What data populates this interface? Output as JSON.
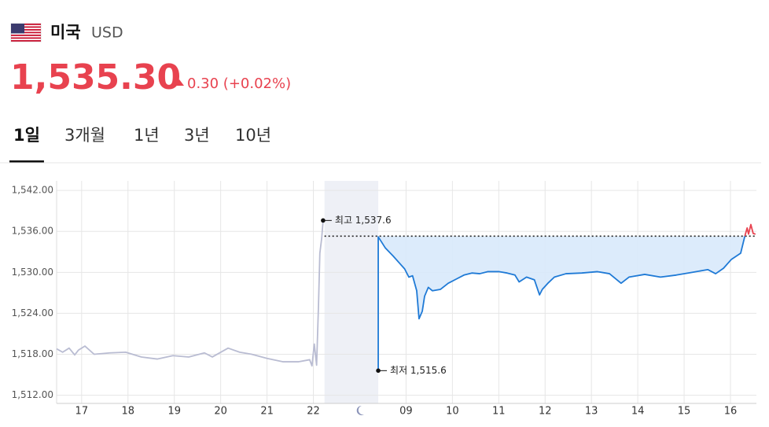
{
  "header": {
    "country": "미국",
    "currency": "USD",
    "price": {
      "value": 1535.3,
      "label": "1,535.30"
    },
    "change": "0.30 (+0.02%)"
  },
  "tabs": {
    "items": [
      "1일",
      "3개월",
      "1년",
      "3년",
      "10년"
    ],
    "active": 0
  },
  "chart_data": {
    "type": "line",
    "xlim": [
      -0.54,
      14.56
    ],
    "ylim": [
      1510.8,
      1543.4
    ],
    "yticks": [
      {
        "value": 1542,
        "label": "1,542.00"
      },
      {
        "value": 1536,
        "label": "1,536.00"
      },
      {
        "value": 1530,
        "label": "1,530.00"
      },
      {
        "value": 1524,
        "label": "1,524.00"
      },
      {
        "value": 1518,
        "label": "1,518.00"
      },
      {
        "value": 1512,
        "label": "1,512.00"
      }
    ],
    "xticks": [
      {
        "value": 0,
        "label": "17"
      },
      {
        "value": 1,
        "label": "18"
      },
      {
        "value": 2,
        "label": "19"
      },
      {
        "value": 3,
        "label": "20"
      },
      {
        "value": 4,
        "label": "21"
      },
      {
        "value": 5,
        "label": "22"
      },
      {
        "value": 7,
        "label": "09"
      },
      {
        "value": 8,
        "label": "10"
      },
      {
        "value": 9,
        "label": "11"
      },
      {
        "value": 10,
        "label": "12"
      },
      {
        "value": 11,
        "label": "13"
      },
      {
        "value": 12,
        "label": "14"
      },
      {
        "value": 13,
        "label": "15"
      },
      {
        "value": 14,
        "label": "16"
      }
    ],
    "grid": true,
    "shaded_x": [
      5.24,
      6.4
    ],
    "series": [
      {
        "color": "#b9bcd2",
        "x": [
          -0.54,
          -0.41,
          -0.27,
          -0.15,
          -0.07,
          0.07,
          0.27,
          0.61,
          0.95,
          1.29,
          1.63,
          1.97,
          2.31,
          2.65,
          2.82,
          3.16,
          3.41,
          3.67,
          4.0,
          4.34,
          4.68,
          4.92,
          4.97,
          5.02,
          5.07,
          5.11,
          5.14,
          5.18,
          5.21
        ],
        "values": [
          1518.8,
          1518.3,
          1518.9,
          1517.9,
          1518.6,
          1519.2,
          1518.0,
          1518.2,
          1518.3,
          1517.6,
          1517.3,
          1517.8,
          1517.6,
          1518.2,
          1517.6,
          1518.9,
          1518.3,
          1518.0,
          1517.4,
          1516.9,
          1516.9,
          1517.2,
          1516.3,
          1519.5,
          1516.4,
          1525.0,
          1532.8,
          1535.0,
          1537.6
        ]
      },
      {
        "color": "#1f7ad6",
        "fill": "#d8e9fb",
        "x": [
          6.4,
          6.4,
          6.55,
          6.72,
          6.97,
          7.06,
          7.14,
          7.23,
          7.28,
          7.35,
          7.4,
          7.48,
          7.57,
          7.74,
          7.91,
          8.08,
          8.25,
          8.42,
          8.59,
          8.76,
          9.01,
          9.18,
          9.35,
          9.44,
          9.6,
          9.77,
          9.88,
          9.94,
          10.06,
          10.2,
          10.45,
          10.79,
          11.13,
          11.39,
          11.64,
          11.81,
          12.15,
          12.49,
          12.83,
          13.17,
          13.51,
          13.68,
          13.85,
          14.02,
          14.22,
          14.31
        ],
        "values": [
          1515.6,
          1535.2,
          1533.6,
          1532.4,
          1530.5,
          1529.3,
          1529.5,
          1527.3,
          1523.2,
          1524.3,
          1526.5,
          1527.8,
          1527.3,
          1527.5,
          1528.4,
          1529.0,
          1529.6,
          1529.9,
          1529.8,
          1530.1,
          1530.1,
          1529.9,
          1529.6,
          1528.6,
          1529.3,
          1528.9,
          1526.7,
          1527.5,
          1528.4,
          1529.3,
          1529.8,
          1529.9,
          1530.1,
          1529.8,
          1528.4,
          1529.3,
          1529.7,
          1529.3,
          1529.6,
          1530.0,
          1530.4,
          1529.8,
          1530.6,
          1531.9,
          1532.8,
          1535.3
        ]
      },
      {
        "color": "#e8424f",
        "x": [
          14.31,
          14.36,
          14.39,
          14.44,
          14.49,
          14.54
        ],
        "values": [
          1535.3,
          1536.5,
          1535.6,
          1537.0,
          1535.7,
          1535.6
        ]
      }
    ],
    "annotations": [
      {
        "label": "최고 1,537.6",
        "x": 5.21,
        "y": 1537.6
      },
      {
        "label": "최저 1,515.6",
        "x": 6.4,
        "y": 1515.6
      }
    ]
  }
}
